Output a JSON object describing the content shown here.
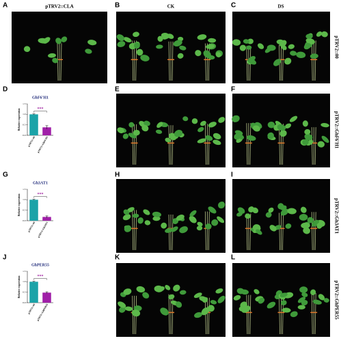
{
  "panel_letters": [
    "A",
    "B",
    "C",
    "D",
    "E",
    "F",
    "G",
    "H",
    "I",
    "J",
    "K",
    "L"
  ],
  "column_titles": {
    "cla": "pTRV2::CLA",
    "ck": "CK",
    "ds": "DS"
  },
  "row_labels": [
    "pTRV2::00",
    "pTRV2::GhF6'H1",
    "pTRV2::Gh3AT1",
    "pTRV2::GhPER55"
  ],
  "chart_data": [
    {
      "type": "bar",
      "title": "GhF6'H1",
      "y_label": "Relative expression",
      "categories": [
        "pTRV2::00",
        "pTRV2::GhF6'H1"
      ],
      "values": [
        1.0,
        0.38
      ],
      "errors": [
        0.02,
        0.08
      ],
      "colors": [
        "#1ba3a8",
        "#a020a8"
      ],
      "annotation": "***",
      "ylim": [
        0,
        1.5
      ],
      "yticks": [
        {
          "value": 0,
          "label": "0.0"
        },
        {
          "value": 0.5,
          "label": "0.5"
        },
        {
          "value": 1,
          "label": "1.0"
        },
        {
          "value": 1.5,
          "label": "1.5"
        }
      ]
    },
    {
      "type": "bar",
      "title": "Gh3AT1",
      "y_label": "Relative expression",
      "categories": [
        "pTRV2::00",
        "pTRV2::Gh3AT1"
      ],
      "values": [
        1.0,
        0.18
      ],
      "errors": [
        0.02,
        0.05
      ],
      "colors": [
        "#1ba3a8",
        "#a020a8"
      ],
      "annotation": "***",
      "ylim": [
        0,
        1.5
      ],
      "yticks": [
        {
          "value": 0,
          "label": "0.0"
        },
        {
          "value": 0.5,
          "label": "0.5"
        },
        {
          "value": 1,
          "label": "1.0"
        },
        {
          "value": 1.5,
          "label": "1.5"
        }
      ]
    },
    {
      "type": "bar",
      "title": "GhPER55",
      "y_label": "Relative expression",
      "categories": [
        "pTRV2::00",
        "pTRV2::GhPER55"
      ],
      "values": [
        1.0,
        0.48
      ],
      "errors": [
        0.02,
        0.04
      ],
      "colors": [
        "#1ba3a8",
        "#a020a8"
      ],
      "annotation": "***",
      "ylim": [
        0,
        1.5
      ],
      "yticks": [
        {
          "value": 0,
          "label": "0.0"
        },
        {
          "value": 0.5,
          "label": "0.5"
        },
        {
          "value": 1,
          "label": "1.0"
        },
        {
          "value": 1.5,
          "label": "1.5"
        }
      ]
    }
  ]
}
